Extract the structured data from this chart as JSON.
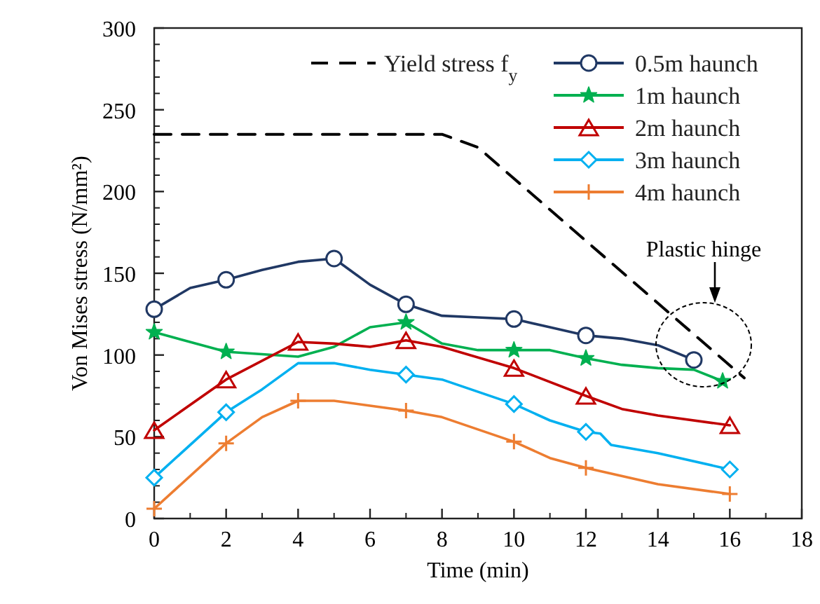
{
  "chart_data": {
    "type": "line",
    "xlabel": "Time (min)",
    "ylabel": "Von Mises stress  (N/mm²)",
    "xlim": [
      0,
      18
    ],
    "xticks": [
      0,
      2,
      4,
      6,
      8,
      10,
      12,
      14,
      16,
      18
    ],
    "ylim": [
      0,
      300
    ],
    "yticks": [
      0,
      50,
      100,
      150,
      200,
      250,
      300
    ],
    "grid": false,
    "legend": "top right",
    "line_style": "solid",
    "series": [
      {
        "name": "Yield stress f$_{y}$",
        "color": "#000000",
        "line_style": "dashed",
        "marker": "none",
        "x": [
          0,
          8,
          9,
          16.4
        ],
        "values": [
          235,
          235,
          227,
          86
        ]
      },
      {
        "name": "0.5m haunch",
        "color": "#203864",
        "marker": "none",
        "x": [
          0,
          1,
          2,
          3,
          4,
          5,
          6,
          7,
          8,
          9,
          10,
          11,
          12,
          13,
          14,
          15
        ],
        "values": [
          128,
          141,
          146,
          152,
          157,
          159,
          143,
          131,
          124,
          123,
          122,
          117,
          112,
          110,
          106,
          97
        ]
      },
      {
        "type": "scatter",
        "color": "#203864",
        "marker": "circle",
        "x": [
          0,
          2,
          5,
          7,
          10,
          12,
          15
        ],
        "values": [
          128,
          146,
          159,
          131,
          122,
          112,
          97
        ]
      },
      {
        "name": "1m haunch",
        "color": "#00b050",
        "marker": "none",
        "x": [
          0,
          2,
          4,
          5,
          6,
          7,
          8,
          9,
          10,
          11,
          12,
          13,
          14,
          15,
          15.8
        ],
        "values": [
          114,
          102,
          99,
          105,
          117,
          120,
          107,
          103,
          103,
          103,
          98,
          94,
          92,
          91,
          84
        ]
      },
      {
        "type": "scatter",
        "color": "#00b050",
        "marker": "star",
        "x": [
          0,
          2,
          7,
          10,
          12,
          15.8
        ],
        "values": [
          114,
          102,
          120,
          103,
          98,
          84
        ]
      },
      {
        "name": "2m haunch",
        "color": "#c00000",
        "marker": "none",
        "x": [
          0,
          2,
          4,
          5,
          6,
          7,
          8,
          10,
          12,
          13,
          14,
          16
        ],
        "values": [
          54,
          85,
          108,
          107,
          105,
          109,
          105,
          92,
          75,
          67,
          63,
          57
        ]
      },
      {
        "type": "scatter",
        "color": "#c00000",
        "marker": "triangle",
        "x": [
          0,
          2,
          4,
          7,
          10,
          12,
          16
        ],
        "values": [
          54,
          85,
          108,
          109,
          92,
          75,
          57
        ]
      },
      {
        "name": "3m haunch",
        "color": "#00b0f0",
        "marker": "none",
        "x": [
          0,
          2,
          3,
          4,
          5,
          6,
          7,
          8,
          10,
          11,
          12,
          12.4,
          12.7,
          14,
          16
        ],
        "values": [
          25,
          65,
          79,
          95,
          95,
          91,
          88,
          85,
          70,
          60,
          53,
          52,
          45,
          40,
          30
        ]
      },
      {
        "type": "scatter",
        "color": "#00b0f0",
        "marker": "diamond",
        "x": [
          0,
          2,
          7,
          10,
          12,
          16
        ],
        "values": [
          25,
          65,
          88,
          70,
          53,
          30
        ]
      },
      {
        "name": "4m haunch",
        "color": "#ed7d31",
        "marker": "none",
        "x": [
          0,
          2,
          3,
          4,
          5,
          6,
          7,
          8,
          10,
          11,
          12,
          14,
          16
        ],
        "values": [
          6,
          46,
          62,
          72,
          72,
          69,
          66,
          62,
          47,
          37,
          31,
          21,
          15
        ]
      },
      {
        "type": "scatter",
        "color": "#ed7d31",
        "marker": "cross",
        "x": [
          0,
          2,
          4,
          7,
          10,
          12,
          16
        ],
        "values": [
          6,
          46,
          72,
          66,
          47,
          31,
          15
        ]
      }
    ],
    "annotations": [
      "Plastic hinge"
    ]
  }
}
